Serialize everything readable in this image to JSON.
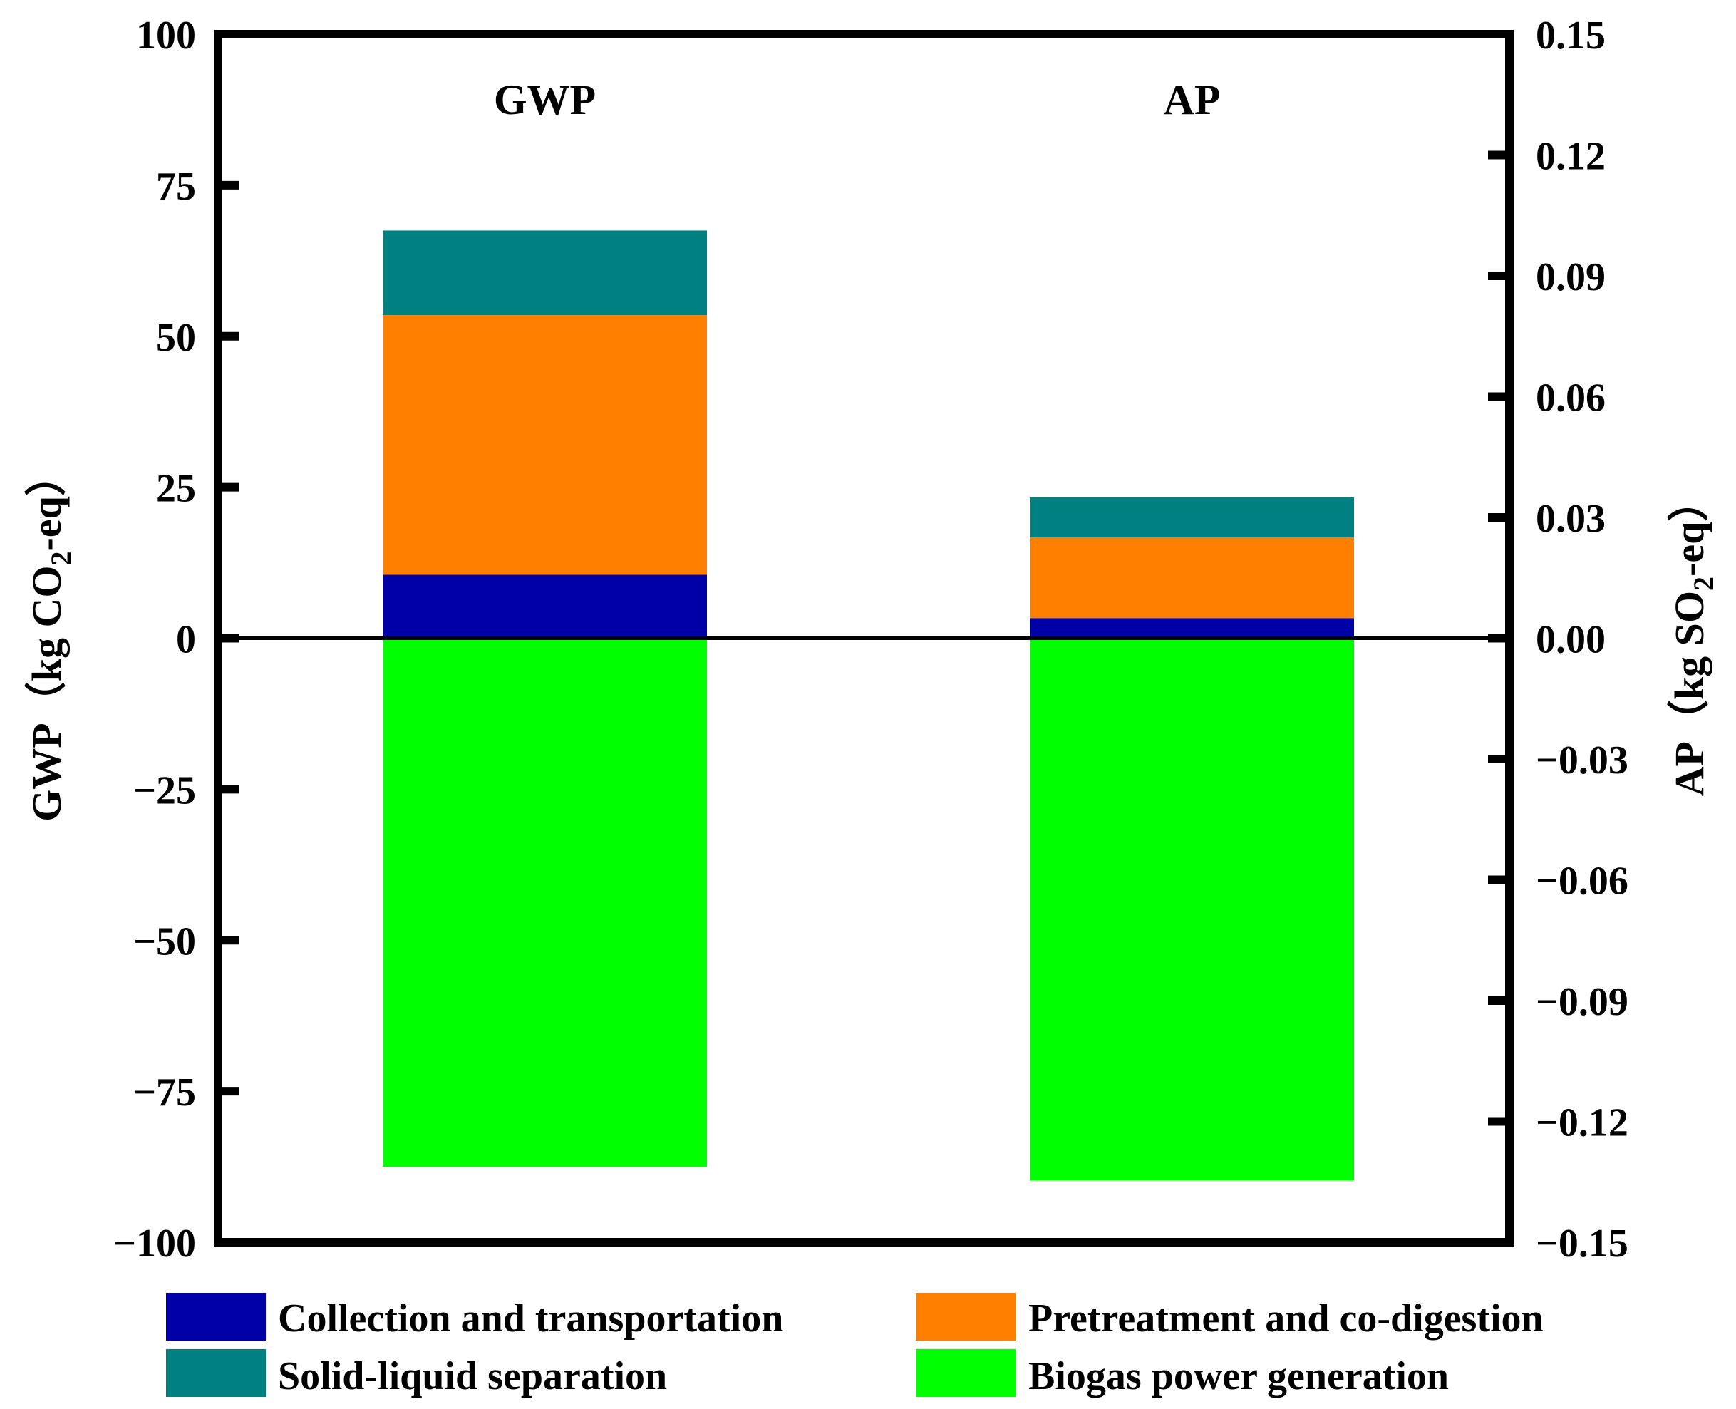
{
  "chart_data": {
    "type": "bar",
    "stacked": true,
    "categories": [
      "GWP",
      "AP"
    ],
    "series": [
      {
        "name": "Collection and transportation",
        "color": "#0000A8",
        "values": [
          10.5,
          0.005
        ]
      },
      {
        "name": "Pretreatment and co-digestion",
        "color": "#FF8000",
        "values": [
          43.0,
          0.02
        ]
      },
      {
        "name": "Solid-liquid separation",
        "color": "#008080",
        "values": [
          14.0,
          0.01
        ]
      },
      {
        "name": "Biogas power generation",
        "color": "#00FF00",
        "values": [
          -87.5,
          -0.1347
        ]
      }
    ],
    "axes": {
      "left": {
        "title_prefix": "GWP（kg CO",
        "title_sub": "2",
        "title_suffix": "-eq）",
        "ylim": [
          -100,
          100
        ],
        "ticks": [
          100,
          75,
          50,
          25,
          0,
          -25,
          -50,
          -75,
          -100
        ],
        "tick_labels": [
          "100",
          "75",
          "50",
          "25",
          "0",
          "−25",
          "−50",
          "−75",
          "−100"
        ]
      },
      "right": {
        "title_prefix": "AP（kg SO",
        "title_sub": "2",
        "title_suffix": "-eq）",
        "ylim": [
          -0.15,
          0.15
        ],
        "ticks": [
          0.15,
          0.12,
          0.09,
          0.06,
          0.03,
          0.0,
          -0.03,
          -0.06,
          -0.09,
          -0.12,
          -0.15
        ],
        "tick_labels": [
          "0.15",
          "0.12",
          "0.09",
          "0.06",
          "0.03",
          "0.00",
          "−0.03",
          "−0.06",
          "−0.09",
          "−0.12",
          "−0.15"
        ]
      }
    },
    "panel_labels": [
      "GWP",
      "AP"
    ],
    "legend": {
      "position": "bottom",
      "columns": 2
    },
    "grid": false
  }
}
